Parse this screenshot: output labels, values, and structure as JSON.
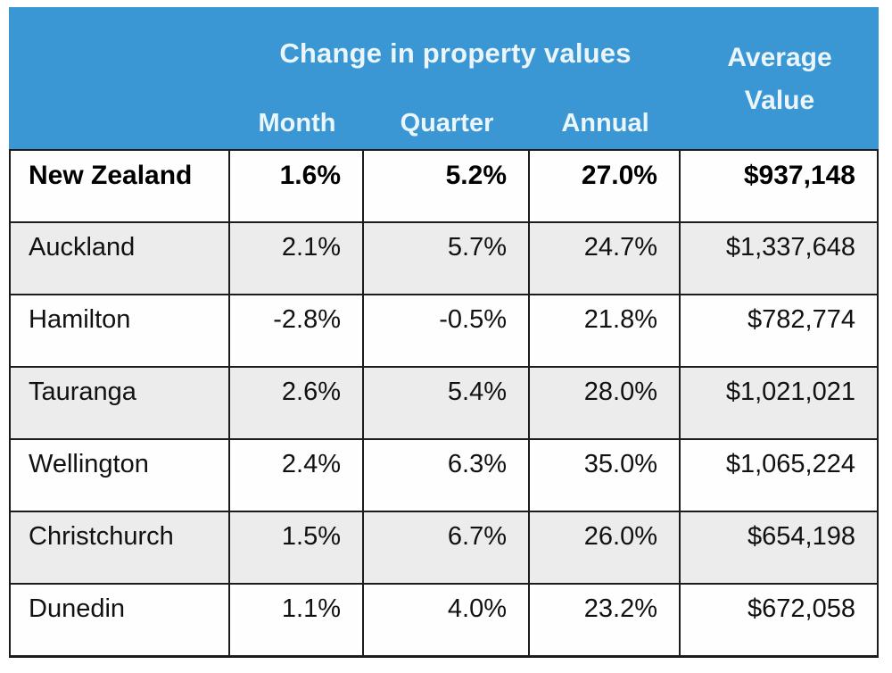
{
  "chart_data": {
    "type": "table",
    "group_header": "Change in property values",
    "sub_columns": [
      "Month",
      "Quarter",
      "Annual"
    ],
    "average_column": {
      "line1": "Average",
      "line2": "Value"
    },
    "rows": [
      {
        "region": "New Zealand",
        "month": "1.6%",
        "quarter": "5.2%",
        "annual": "27.0%",
        "average_value": "$937,148"
      },
      {
        "region": "Auckland",
        "month": "2.1%",
        "quarter": "5.7%",
        "annual": "24.7%",
        "average_value": "$1,337,648"
      },
      {
        "region": "Hamilton",
        "month": "-2.8%",
        "quarter": "-0.5%",
        "annual": "21.8%",
        "average_value": "$782,774"
      },
      {
        "region": "Tauranga",
        "month": "2.6%",
        "quarter": "5.4%",
        "annual": "28.0%",
        "average_value": "$1,021,021"
      },
      {
        "region": "Wellington",
        "month": "2.4%",
        "quarter": "6.3%",
        "annual": "35.0%",
        "average_value": "$1,065,224"
      },
      {
        "region": "Christchurch",
        "month": "1.5%",
        "quarter": "6.7%",
        "annual": "26.0%",
        "average_value": "$654,198"
      },
      {
        "region": "Dunedin",
        "month": "1.1%",
        "quarter": "4.0%",
        "annual": "23.2%",
        "average_value": "$672,058"
      }
    ],
    "colors": {
      "header_bg": "#3A97D4",
      "header_text": "#EAF5FC",
      "stripe_bg": "#ECECEC",
      "border": "#1C1C1C"
    }
  }
}
